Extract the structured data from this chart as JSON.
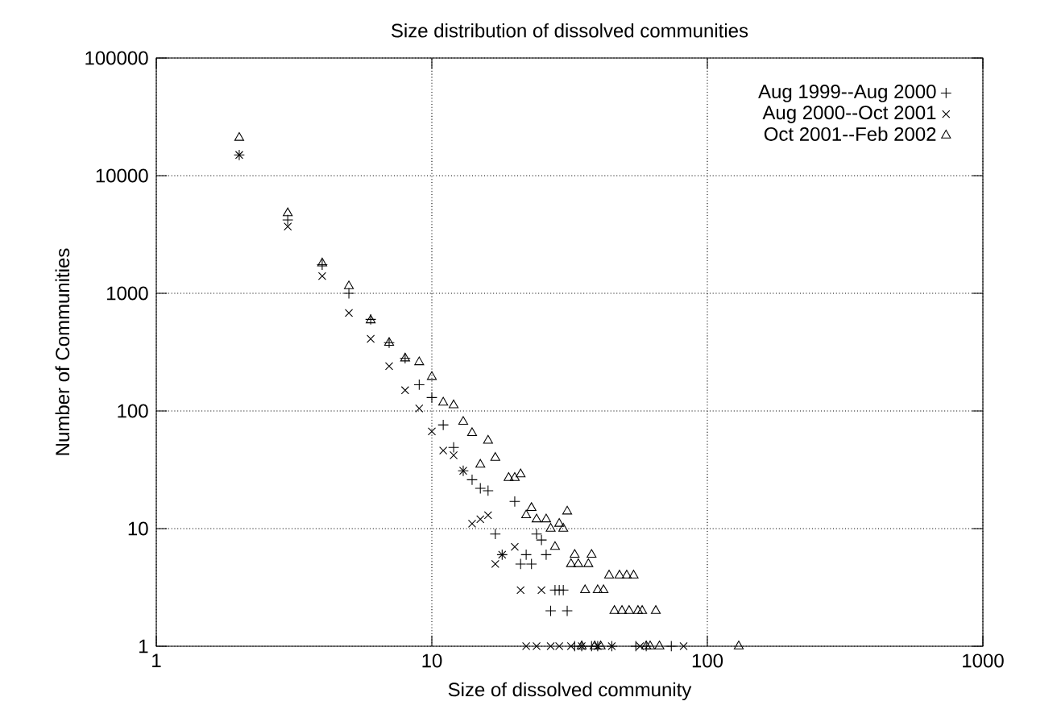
{
  "chart_data": {
    "type": "scatter",
    "title": "Size distribution of dissolved communities",
    "xlabel": "Size of dissolved community",
    "ylabel": "Number of Communities",
    "log": "xy",
    "grid": true,
    "legend": "top right",
    "xlim": [
      1,
      1000
    ],
    "xticks": [
      1,
      10,
      100,
      1000
    ],
    "ylim": [
      1,
      100000
    ],
    "yticks": [
      1,
      10,
      100,
      1000,
      10000,
      100000
    ],
    "series": [
      {
        "name": "Aug 1999--Aug 2000",
        "color": "#000000",
        "marker": "plus",
        "x": [
          2,
          3,
          4,
          5,
          6,
          7,
          8,
          9,
          10,
          11,
          12,
          13,
          14,
          15,
          16,
          17,
          18,
          20,
          21,
          22,
          23,
          24,
          25,
          26,
          27,
          28,
          29,
          30,
          31,
          33,
          35,
          38,
          40,
          45,
          55,
          60,
          74
        ],
        "values": [
          15000,
          4200,
          1750,
          1000,
          600,
          380,
          280,
          167,
          130,
          76,
          49,
          31,
          26,
          22,
          21,
          9,
          6,
          17,
          5,
          6,
          5,
          9,
          8,
          6,
          2,
          3,
          3,
          3,
          2,
          1,
          1,
          1,
          1,
          1,
          1,
          1,
          1
        ]
      },
      {
        "name": "Aug 2000--Oct 2001",
        "color": "#000000",
        "marker": "cross",
        "x": [
          2,
          3,
          4,
          5,
          6,
          7,
          8,
          9,
          10,
          11,
          12,
          13,
          14,
          15,
          16,
          17,
          18,
          20,
          21,
          22,
          24,
          25,
          27,
          29,
          32,
          35,
          40,
          45,
          57,
          82
        ],
        "values": [
          15000,
          3700,
          1400,
          680,
          410,
          240,
          150,
          105,
          67,
          46,
          42,
          31,
          11,
          12,
          13,
          5,
          6,
          7,
          3,
          1,
          1,
          3,
          1,
          1,
          1,
          1,
          1,
          1,
          1,
          1
        ]
      },
      {
        "name": "Oct 2001--Feb 2002",
        "color": "#000000",
        "marker": "triangle",
        "x": [
          2,
          3,
          4,
          5,
          6,
          7,
          8,
          9,
          10,
          11,
          12,
          13,
          14,
          15,
          16,
          17,
          19,
          20,
          21,
          22,
          23,
          24,
          26,
          27,
          28,
          29,
          30,
          31,
          32,
          33,
          34,
          35,
          36,
          37,
          38,
          39,
          40,
          41,
          42,
          44,
          46,
          48,
          49,
          51,
          52,
          54,
          56,
          58,
          60,
          62,
          65,
          67,
          130
        ],
        "values": [
          21000,
          4800,
          1800,
          1150,
          590,
          380,
          280,
          260,
          195,
          118,
          112,
          81,
          65,
          35,
          56,
          40,
          27,
          27,
          29,
          13,
          15,
          12,
          12,
          10,
          7,
          11,
          10,
          14,
          5,
          6,
          5,
          1,
          3,
          5,
          6,
          1,
          3,
          1,
          3,
          4,
          2,
          4,
          2,
          4,
          2,
          4,
          2,
          2,
          1,
          1,
          2,
          1,
          1
        ]
      }
    ]
  }
}
